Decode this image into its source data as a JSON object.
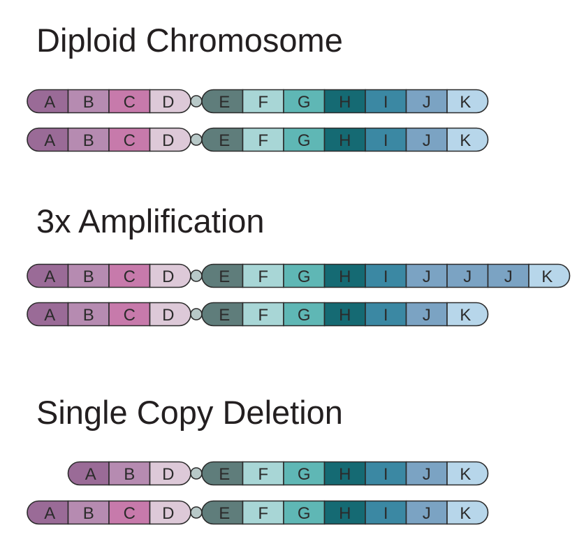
{
  "colors": {
    "A": "#9a6b97",
    "B": "#b68bb1",
    "C": "#c77aab",
    "D": "#ddc9d8",
    "E": "#5f7d7b",
    "F": "#a8d6d6",
    "G": "#5fb7b5",
    "H": "#156a73",
    "I": "#3b88a3",
    "J": "#7ba3c3",
    "K": "#b7d6ea",
    "centromere": "#b8c9c8",
    "outline": "#2b2b2b",
    "title": "#231f20"
  },
  "sections": [
    {
      "title": "Diploid Chromosome",
      "chromosomes": [
        {
          "p_arm": [
            "A",
            "B",
            "C",
            "D"
          ],
          "q_arm": [
            "E",
            "F",
            "G",
            "H",
            "I",
            "J",
            "K"
          ]
        },
        {
          "p_arm": [
            "A",
            "B",
            "C",
            "D"
          ],
          "q_arm": [
            "E",
            "F",
            "G",
            "H",
            "I",
            "J",
            "K"
          ]
        }
      ]
    },
    {
      "title": "3x Amplification",
      "chromosomes": [
        {
          "p_arm": [
            "A",
            "B",
            "C",
            "D"
          ],
          "q_arm": [
            "E",
            "F",
            "G",
            "H",
            "I",
            "J",
            "J",
            "J",
            "K"
          ]
        },
        {
          "p_arm": [
            "A",
            "B",
            "C",
            "D"
          ],
          "q_arm": [
            "E",
            "F",
            "G",
            "H",
            "I",
            "J",
            "K"
          ]
        }
      ]
    },
    {
      "title": "Single Copy Deletion",
      "chromosomes": [
        {
          "p_arm": [
            "A",
            "B",
            "D"
          ],
          "q_arm": [
            "E",
            "F",
            "G",
            "H",
            "I",
            "J",
            "K"
          ]
        },
        {
          "p_arm": [
            "A",
            "B",
            "C",
            "D"
          ],
          "q_arm": [
            "E",
            "F",
            "G",
            "H",
            "I",
            "J",
            "K"
          ]
        }
      ]
    }
  ]
}
